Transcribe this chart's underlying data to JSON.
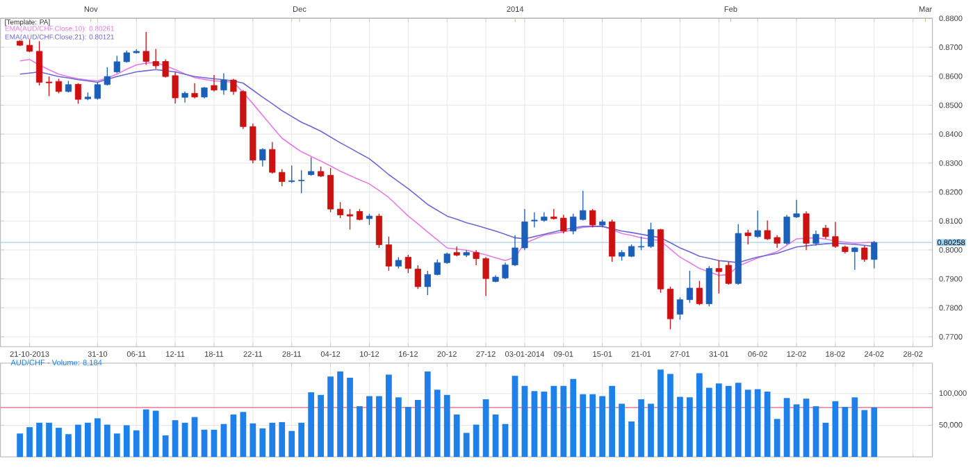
{
  "chart_data": [
    {
      "type": "candlestick",
      "annotations": [
        "[Template: PA]"
      ],
      "legend": "top left",
      "grid": true,
      "categories": [
        null,
        "21-10-2013",
        null,
        null,
        null,
        null,
        null,
        null,
        "31-10",
        null,
        null,
        null,
        "06-11",
        null,
        null,
        null,
        "12-11",
        null,
        null,
        null,
        "18-11",
        null,
        null,
        null,
        "22-11",
        null,
        null,
        null,
        "28-11",
        null,
        null,
        null,
        "04-12",
        null,
        null,
        null,
        "10-12",
        null,
        null,
        null,
        "16-12",
        null,
        null,
        null,
        "20-12",
        null,
        null,
        null,
        "27-12",
        null,
        null,
        null,
        "03-01-2014",
        null,
        null,
        null,
        "09-01",
        null,
        null,
        null,
        "15-01",
        null,
        null,
        null,
        "21-01",
        null,
        null,
        null,
        "27-01",
        null,
        null,
        null,
        "31-01",
        null,
        null,
        null,
        "06-02",
        null,
        null,
        null,
        "12-02",
        null,
        null,
        null,
        "18-02",
        null,
        null,
        null,
        "24-02",
        null,
        null,
        null,
        "28-02"
      ],
      "ohlc": [
        [
          0.8721,
          0.8724,
          0.8704,
          0.8707
        ],
        [
          0.8707,
          0.8726,
          0.8683,
          0.8686
        ],
        [
          0.8686,
          0.8721,
          0.8568,
          0.8579
        ],
        [
          0.858,
          0.8599,
          0.8531,
          0.8577
        ],
        [
          0.8582,
          0.8591,
          0.8541,
          0.8547
        ],
        [
          0.8547,
          0.8584,
          0.8544,
          0.8571
        ],
        [
          0.8572,
          0.8576,
          0.8505,
          0.852
        ],
        [
          0.8522,
          0.8544,
          0.8517,
          0.8528
        ],
        [
          0.8523,
          0.8579,
          0.8519,
          0.8571
        ],
        [
          0.8571,
          0.8631,
          0.8568,
          0.8599
        ],
        [
          0.8615,
          0.867,
          0.861,
          0.865
        ],
        [
          0.865,
          0.8689,
          0.8647,
          0.8681
        ],
        [
          0.8681,
          0.8693,
          0.8678,
          0.8686
        ],
        [
          0.8686,
          0.8753,
          0.8639,
          0.8651
        ],
        [
          0.8651,
          0.8694,
          0.8626,
          0.8636
        ],
        [
          0.8651,
          0.8658,
          0.8595,
          0.8599
        ],
        [
          0.8602,
          0.8615,
          0.8505,
          0.8525
        ],
        [
          0.8527,
          0.8547,
          0.8509,
          0.8541
        ],
        [
          0.8541,
          0.8576,
          0.8523,
          0.8528
        ],
        [
          0.8528,
          0.8563,
          0.8523,
          0.856
        ],
        [
          0.8568,
          0.8604,
          0.8547,
          0.8552
        ],
        [
          0.8552,
          0.861,
          0.8536,
          0.8587
        ],
        [
          0.8587,
          0.8591,
          0.8536,
          0.8547
        ],
        [
          0.8547,
          0.8552,
          0.8418,
          0.8426
        ],
        [
          0.8426,
          0.8437,
          0.8299,
          0.831
        ],
        [
          0.831,
          0.8351,
          0.8288,
          0.8347
        ],
        [
          0.8347,
          0.8373,
          0.8263,
          0.8268
        ],
        [
          0.8268,
          0.8279,
          0.822,
          0.8236
        ],
        [
          0.8236,
          0.8291,
          0.8231,
          0.8239
        ],
        [
          0.8239,
          0.8275,
          0.8196,
          0.8241
        ],
        [
          0.826,
          0.832,
          0.8256,
          0.8271
        ],
        [
          0.8271,
          0.8288,
          0.8252,
          0.8255
        ],
        [
          0.8258,
          0.8283,
          0.813,
          0.8141
        ],
        [
          0.8141,
          0.8165,
          0.811,
          0.8121
        ],
        [
          0.8122,
          0.8141,
          0.807,
          0.8117
        ],
        [
          0.8133,
          0.8141,
          0.8102,
          0.8105
        ],
        [
          0.8108,
          0.8125,
          0.8086,
          0.8117
        ],
        [
          0.8117,
          0.8125,
          0.8007,
          0.8018
        ],
        [
          0.8018,
          0.8046,
          0.7928,
          0.7944
        ],
        [
          0.7944,
          0.7975,
          0.7936,
          0.7964
        ],
        [
          0.7975,
          0.7983,
          0.792,
          0.7936
        ],
        [
          0.7934,
          0.7947,
          0.7865,
          0.7873
        ],
        [
          0.7873,
          0.7928,
          0.7844,
          0.7915
        ],
        [
          0.7915,
          0.7967,
          0.7912,
          0.7956
        ],
        [
          0.7956,
          0.7991,
          0.7952,
          0.7986
        ],
        [
          0.7991,
          0.8012,
          0.7978,
          0.7982
        ],
        [
          0.7982,
          0.7999,
          0.7975,
          0.7991
        ],
        [
          0.7991,
          0.7999,
          0.7947,
          0.797
        ],
        [
          0.797,
          0.7975,
          0.7841,
          0.7901
        ],
        [
          0.7891,
          0.7912,
          0.7888,
          0.7906
        ],
        [
          0.7903,
          0.7956,
          0.7899,
          0.7948
        ],
        [
          0.7948,
          0.8051,
          0.7944,
          0.8007
        ],
        [
          0.8007,
          0.8141,
          0.7999,
          0.8097
        ],
        [
          0.81,
          0.813,
          0.8078,
          0.8103
        ],
        [
          0.8102,
          0.813,
          0.8097,
          0.8114
        ],
        [
          0.8114,
          0.8141,
          0.8105,
          0.8108
        ],
        [
          0.811,
          0.8121,
          0.8057,
          0.8065
        ],
        [
          0.8065,
          0.8125,
          0.8054,
          0.8114
        ],
        [
          0.8105,
          0.8204,
          0.8102,
          0.8136
        ],
        [
          0.8136,
          0.8141,
          0.8078,
          0.8086
        ],
        [
          0.8086,
          0.8105,
          0.8078,
          0.8097
        ],
        [
          0.8097,
          0.8105,
          0.7959,
          0.7978
        ],
        [
          0.7978,
          0.7999,
          0.7963,
          0.7991
        ],
        [
          0.7978,
          0.8019,
          0.7975,
          0.8012
        ],
        [
          0.801,
          0.8046,
          0.7999,
          0.8012
        ],
        [
          0.8012,
          0.8094,
          0.8007,
          0.807
        ],
        [
          0.807,
          0.8073,
          0.7852,
          0.7865
        ],
        [
          0.7865,
          0.7873,
          0.7726,
          0.7762
        ],
        [
          0.7778,
          0.7836,
          0.7759,
          0.7828
        ],
        [
          0.7828,
          0.7928,
          0.7817,
          0.7868
        ],
        [
          0.7868,
          0.7893,
          0.7809,
          0.7814
        ],
        [
          0.7814,
          0.7944,
          0.7805,
          0.7936
        ],
        [
          0.7936,
          0.7963,
          0.7849,
          0.7925
        ],
        [
          0.7947,
          0.7959,
          0.788,
          0.7884
        ],
        [
          0.7884,
          0.8089,
          0.788,
          0.8057
        ],
        [
          0.8059,
          0.807,
          0.8019,
          0.8049
        ],
        [
          0.8046,
          0.8136,
          0.8042,
          0.8067
        ],
        [
          0.8067,
          0.8102,
          0.8034,
          0.8038
        ],
        [
          0.8043,
          0.8051,
          0.8007,
          0.8023
        ],
        [
          0.8023,
          0.8121,
          0.8018,
          0.8114
        ],
        [
          0.8114,
          0.8173,
          0.811,
          0.8125
        ],
        [
          0.8125,
          0.8133,
          0.7999,
          0.8023
        ],
        [
          0.8023,
          0.8067,
          0.8015,
          0.8054
        ],
        [
          0.8075,
          0.8086,
          0.8038,
          0.8046
        ],
        [
          0.8046,
          0.8097,
          0.8007,
          0.8012
        ],
        [
          0.801,
          0.8015,
          0.7988,
          0.7994
        ],
        [
          0.7994,
          0.801,
          0.7931,
          0.8007
        ],
        [
          0.8007,
          0.8015,
          0.7959,
          0.7967
        ],
        [
          0.7967,
          0.8031,
          0.7936,
          0.80258
        ],
        null,
        null,
        null,
        null
      ],
      "colors": [
        "#cc1111",
        "#cc1111",
        "#cc1111",
        "#cc1111",
        "#cc1111",
        "#1c5fb8",
        "#cc1111",
        "#1c5fb8",
        "#1c5fb8",
        "#1c5fb8",
        "#1c5fb8",
        "#1c5fb8",
        "#1c5fb8",
        "#cc1111",
        "#cc1111",
        "#cc1111",
        "#cc1111",
        "#1c5fb8",
        "#cc1111",
        "#1c5fb8",
        "#cc1111",
        "#1c5fb8",
        "#cc1111",
        "#cc1111",
        "#cc1111",
        "#1c5fb8",
        "#cc1111",
        "#cc1111",
        "#1c5fb8",
        "#1c5fb8",
        "#1c5fb8",
        "#cc1111",
        "#cc1111",
        "#cc1111",
        "#cc1111",
        "#cc1111",
        "#1c5fb8",
        "#cc1111",
        "#cc1111",
        "#1c5fb8",
        "#cc1111",
        "#cc1111",
        "#1c5fb8",
        "#1c5fb8",
        "#1c5fb8",
        "#cc1111",
        "#1c5fb8",
        "#cc1111",
        "#cc1111",
        "#1c5fb8",
        "#1c5fb8",
        "#1c5fb8",
        "#1c5fb8",
        "#1c5fb8",
        "#1c5fb8",
        "#cc1111",
        "#cc1111",
        "#1c5fb8",
        "#1c5fb8",
        "#cc1111",
        "#1c5fb8",
        "#cc1111",
        "#1c5fb8",
        "#1c5fb8",
        "#1c5fb8",
        "#1c5fb8",
        "#cc1111",
        "#cc1111",
        "#1c5fb8",
        "#1c5fb8",
        "#cc1111",
        "#1c5fb8",
        "#cc1111",
        "#cc1111",
        "#1c5fb8",
        "#cc1111",
        "#1c5fb8",
        "#cc1111",
        "#cc1111",
        "#1c5fb8",
        "#1c5fb8",
        "#cc1111",
        "#1c5fb8",
        "#cc1111",
        "#cc1111",
        "#cc1111",
        "#1c5fb8",
        "#cc1111",
        "#1c5fb8",
        null,
        null,
        null,
        null
      ],
      "series": [
        {
          "type": "line",
          "name": "EMA(AUD/CHF.Close,10): 0.80261",
          "color": "#e47be4",
          "values": [
            0.8653,
            0.8658,
            0.8639,
            0.8622,
            0.8607,
            0.8598,
            0.8591,
            0.8587,
            0.8584,
            0.8594,
            0.8607,
            0.8624,
            0.8639,
            0.8645,
            0.8647,
            0.8636,
            0.8623,
            0.8608,
            0.8595,
            0.8589,
            0.8584,
            0.8582,
            0.8579,
            0.8544,
            0.8505,
            0.8465,
            0.8425,
            0.8386,
            0.8362,
            0.8339,
            0.8323,
            0.8307,
            0.829,
            0.8272,
            0.8257,
            0.8242,
            0.8228,
            0.8205,
            0.8181,
            0.8149,
            0.8117,
            0.809,
            0.8062,
            0.8035,
            0.8007,
            0.8003,
            0.7999,
            0.7991,
            0.7983,
            0.7973,
            0.7963,
            0.7975,
            0.8023,
            0.8037,
            0.8051,
            0.8057,
            0.8062,
            0.807,
            0.8078,
            0.8081,
            0.8083,
            0.807,
            0.8057,
            0.805,
            0.8042,
            0.8037,
            0.8031,
            0.8003,
            0.7975,
            0.7956,
            0.7936,
            0.7924,
            0.7912,
            0.7915,
            0.7944,
            0.7958,
            0.7972,
            0.7983,
            0.7994,
            0.8016,
            0.8038,
            0.804,
            0.8042,
            0.8037,
            0.8031,
            0.8027,
            0.8023,
            0.8025,
            0.8027,
            null,
            null,
            null,
            null
          ]
        },
        {
          "type": "line",
          "name": "EMA(AUD/CHF.Close,21): 0.80121",
          "color": "#6a68d4",
          "values": [
            0.8607,
            0.8611,
            0.8615,
            0.8607,
            0.8599,
            0.8594,
            0.8588,
            0.8584,
            0.8579,
            0.8589,
            0.8599,
            0.8607,
            0.8615,
            0.8619,
            0.8623,
            0.8619,
            0.8615,
            0.8607,
            0.8599,
            0.8595,
            0.8591,
            0.8588,
            0.8584,
            0.8576,
            0.8552,
            0.8528,
            0.8505,
            0.8481,
            0.8461,
            0.8441,
            0.8426,
            0.841,
            0.839,
            0.837,
            0.8352,
            0.8333,
            0.8315,
            0.8288,
            0.826,
            0.8236,
            0.8212,
            0.8185,
            0.8157,
            0.8137,
            0.8117,
            0.8106,
            0.8094,
            0.8085,
            0.8075,
            0.8065,
            0.8054,
            0.8042,
            0.8038,
            0.8046,
            0.8054,
            0.8062,
            0.807,
            0.8076,
            0.8081,
            0.8081,
            0.8081,
            0.8073,
            0.8065,
            0.806,
            0.8054,
            0.8048,
            0.8042,
            0.8025,
            0.8007,
            0.7993,
            0.7978,
            0.7971,
            0.7963,
            0.796,
            0.7956,
            0.7966,
            0.7975,
            0.7982,
            0.7988,
            0.7999,
            0.801,
            0.8014,
            0.8018,
            0.8021,
            0.8023,
            0.8021,
            0.8019,
            0.8016,
            0.8012,
            null,
            null,
            null,
            null
          ]
        }
      ],
      "ref_lines": [
        {
          "axis": "y",
          "value": 0.80258,
          "label": "0.80258",
          "color": "#9fd3f2"
        }
      ],
      "ylim": [
        0.7666,
        0.88
      ],
      "x2lim": [
        "2013-10-19",
        "2014-03-02"
      ],
      "x2ticks": [
        {
          "value": "2013-11-01",
          "label": "Nov"
        },
        {
          "value": "2013-12-01",
          "label": "Dec"
        },
        {
          "value": "2014-01-01",
          "label": "2014"
        },
        {
          "value": "2014-02-01",
          "label": "Feb"
        },
        {
          "value": "2014-03-01",
          "label": "Mar"
        }
      ],
      "yticks": [
        {
          "value": 0.77,
          "label": "0.7700"
        },
        {
          "value": 0.78,
          "label": "0.7800"
        },
        {
          "value": 0.79,
          "label": "0.7900"
        },
        {
          "value": 0.8,
          "label": "0.8000"
        },
        {
          "value": 0.81,
          "label": "0.8100"
        },
        {
          "value": 0.82,
          "label": "0.8200"
        },
        {
          "value": 0.83,
          "label": "0.8300"
        },
        {
          "value": 0.84,
          "label": "0.8400"
        },
        {
          "value": 0.85,
          "label": "0.8500"
        },
        {
          "value": 0.86,
          "label": "0.8600"
        },
        {
          "value": 0.87,
          "label": "0.8700"
        },
        {
          "value": 0.88,
          "label": "0.8800"
        }
      ]
    },
    {
      "type": "bar",
      "title": "AUD/CHF - Volume: 8,184",
      "color": "#1e80e8",
      "grid": true,
      "tick_labels": "y",
      "categories": [
        null,
        null,
        null,
        null,
        null,
        null,
        null,
        null,
        null,
        null,
        null,
        null,
        null,
        null,
        null,
        null,
        null,
        null,
        null,
        null,
        null,
        null,
        null,
        null,
        null,
        null,
        null,
        null,
        null,
        null,
        null,
        null,
        null,
        null,
        null,
        null,
        null,
        null,
        null,
        null,
        null,
        null,
        null,
        null,
        null,
        null,
        null,
        null,
        null,
        null,
        null,
        null,
        null,
        null,
        null,
        null,
        null,
        null,
        null,
        null,
        null,
        null,
        null,
        null,
        null,
        null,
        null,
        null,
        null,
        null,
        null,
        null,
        null,
        null,
        null,
        null,
        null,
        null,
        null,
        null,
        null,
        null,
        null,
        null,
        null,
        null,
        null,
        null,
        null,
        null,
        null,
        null,
        null
      ],
      "values": [
        37000,
        47000,
        54000,
        54000,
        46000,
        36000,
        51000,
        54000,
        61000,
        51000,
        37000,
        50000,
        42000,
        75000,
        73000,
        34000,
        58000,
        54000,
        63000,
        43000,
        43000,
        52000,
        67000,
        71000,
        53000,
        45000,
        54000,
        55000,
        41000,
        54000,
        102000,
        98000,
        127000,
        135000,
        125000,
        80000,
        96000,
        96000,
        130000,
        94000,
        79000,
        90000,
        135000,
        106000,
        98000,
        67000,
        38000,
        51000,
        91000,
        67000,
        52000,
        128000,
        112000,
        104000,
        103000,
        112000,
        112000,
        123000,
        99000,
        99000,
        96000,
        112000,
        84000,
        56000,
        91000,
        84000,
        138000,
        131000,
        95000,
        94000,
        132000,
        109000,
        116000,
        112000,
        117000,
        106000,
        107000,
        103000,
        60000,
        93000,
        83000,
        92000,
        80000,
        54000,
        88000,
        79000,
        94000,
        74000,
        78000,
        null,
        null,
        null,
        null
      ],
      "ylim": [
        0,
        148000
      ],
      "yticks": [
        {
          "value": 50000,
          "label": "50,000"
        },
        {
          "value": 100000,
          "label": "100,000"
        }
      ],
      "ref_lines": [
        {
          "axis": "y",
          "value": 78000,
          "color": "#e0607e"
        }
      ]
    }
  ]
}
